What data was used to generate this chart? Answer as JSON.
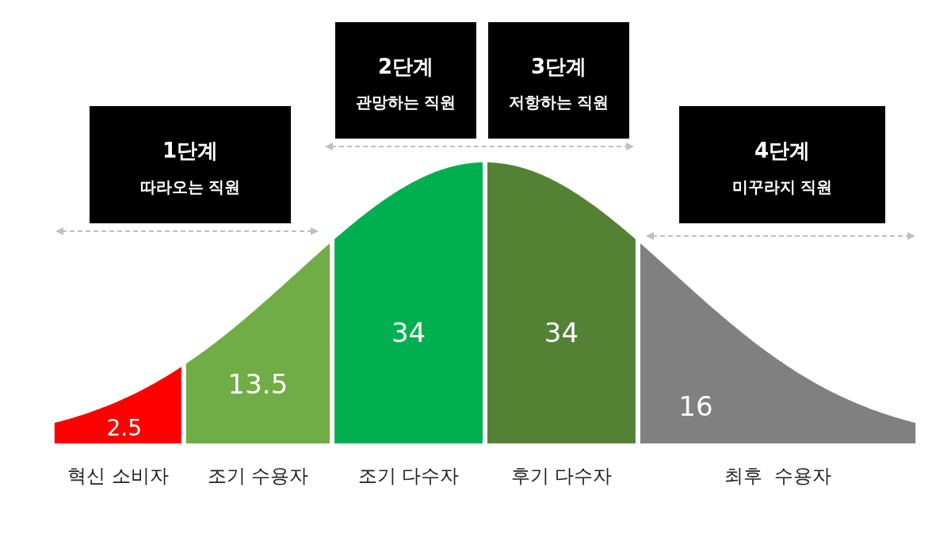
{
  "chart_data": {
    "type": "other",
    "categories": [
      "혁신 소비자",
      "조기 수용자",
      "조기 다수자",
      "후기 다수자",
      "최후  수용자"
    ],
    "values": [
      2.5,
      13.5,
      34,
      34,
      16
    ],
    "colors": [
      "#ff0000",
      "#70ad47",
      "#00b050",
      "#548235",
      "#808080"
    ],
    "data_labels": true,
    "annotations": [
      "1단계",
      "따라오는 직원",
      "2단계",
      "관망하는 직원",
      "3단계",
      "저항하는 직원",
      "4단계",
      "미꾸라지 직원"
    ]
  }
}
